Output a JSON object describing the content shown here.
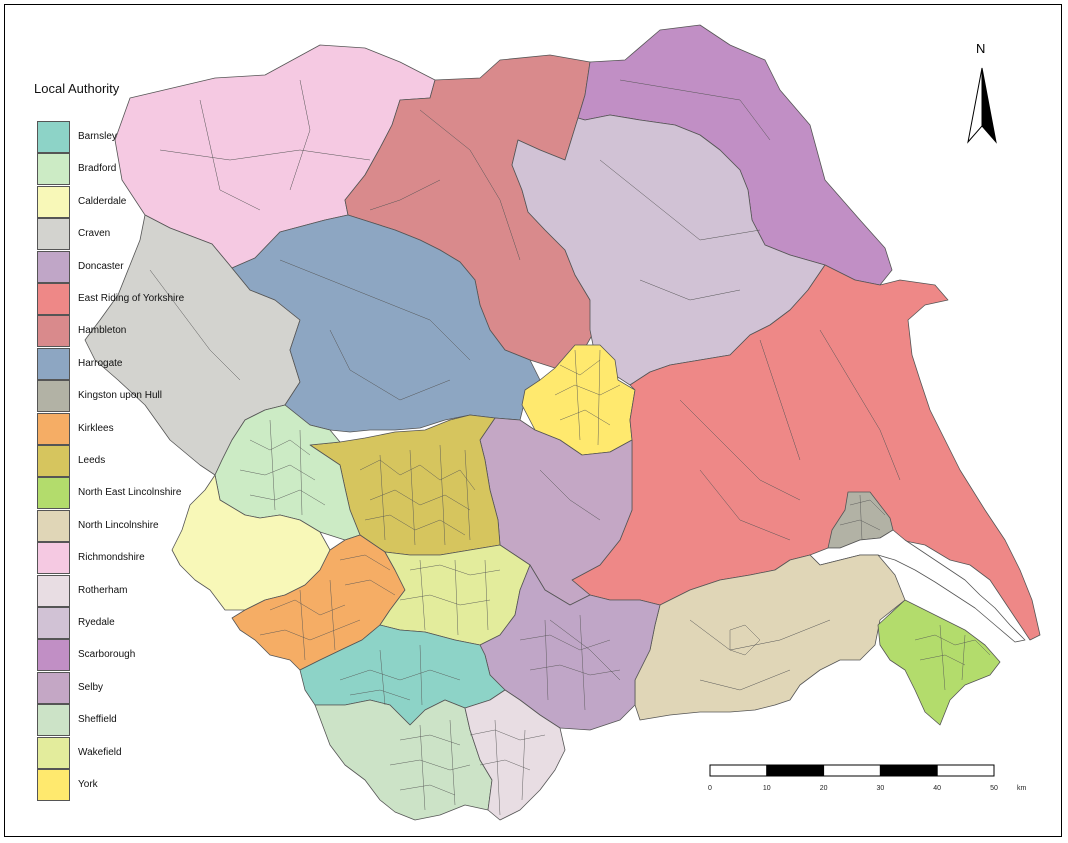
{
  "legend": {
    "title": "Local Authority",
    "items": [
      {
        "label": "Barnsley",
        "color": "#8dd3c7"
      },
      {
        "label": "Bradford",
        "color": "#ccebc5"
      },
      {
        "label": "Calderdale",
        "color": "#f8f8b8"
      },
      {
        "label": "Craven",
        "color": "#d3d3cf"
      },
      {
        "label": "Doncaster",
        "color": "#c0a6c7"
      },
      {
        "label": "East Riding of Yorkshire",
        "color": "#ee8887"
      },
      {
        "label": "Hambleton",
        "color": "#d98a8c"
      },
      {
        "label": "Harrogate",
        "color": "#8da6c2"
      },
      {
        "label": "Kingston upon Hull",
        "color": "#b2b2a5"
      },
      {
        "label": "Kirklees",
        "color": "#f5ad65"
      },
      {
        "label": "Leeds",
        "color": "#d6c55e"
      },
      {
        "label": "North East Lincolnshire",
        "color": "#b3dc6c"
      },
      {
        "label": "North Lincolnshire",
        "color": "#e0d6b7"
      },
      {
        "label": "Richmondshire",
        "color": "#f5c9e2"
      },
      {
        "label": "Rotherham",
        "color": "#e8dde3"
      },
      {
        "label": "Ryedale",
        "color": "#d1c2d5"
      },
      {
        "label": "Scarborough",
        "color": "#c18fc5"
      },
      {
        "label": "Selby",
        "color": "#c4a7c5"
      },
      {
        "label": "Sheffield",
        "color": "#cce3c7"
      },
      {
        "label": "Wakefield",
        "color": "#e3ec9c"
      },
      {
        "label": "York",
        "color": "#ffe96e"
      }
    ]
  },
  "north_arrow": {
    "label": "N"
  },
  "scale_bar": {
    "ticks": [
      "0",
      "10",
      "20",
      "30",
      "40",
      "50"
    ],
    "unit": "km"
  },
  "colors": {
    "boundary": "#555555",
    "estuary": "#ffffff"
  }
}
